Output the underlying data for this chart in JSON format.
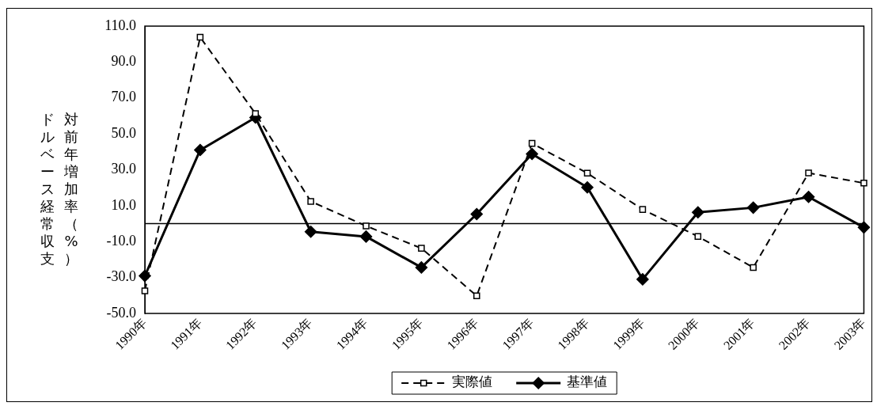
{
  "chart_data": {
    "type": "line",
    "ylabel": "対前年増加率（%）ドルベース経常収支",
    "categories": [
      "1990年",
      "1991年",
      "1992年",
      "1993年",
      "1994年",
      "1995年",
      "1996年",
      "1997年",
      "1998年",
      "1999年",
      "2000年",
      "2001年",
      "2002年",
      "2003年"
    ],
    "series": [
      {
        "name": "実際値",
        "color": "#000000",
        "marker": "square",
        "line_style": "dashed",
        "values": [
          -37.4,
          103.8,
          61.3,
          12.4,
          -1.3,
          -13.7,
          -40.2,
          44.7,
          28.1,
          7.9,
          -7.1,
          -24.4,
          28.2,
          22.6
        ]
      },
      {
        "name": "基準値",
        "color": "#000000",
        "marker": "diamond",
        "line_style": "solid",
        "values": [
          -29.1,
          41.0,
          59.1,
          -4.5,
          -7.2,
          -24.4,
          5.3,
          38.8,
          20.2,
          -31.0,
          6.3,
          8.9,
          14.9,
          -2.1
        ]
      }
    ],
    "ylim": [
      -50,
      110
    ],
    "yticks": [
      {
        "value": 110,
        "label": "110.0"
      },
      {
        "value": 90,
        "label": "90.0"
      },
      {
        "value": 70,
        "label": "70.0"
      },
      {
        "value": 50,
        "label": "50.0"
      },
      {
        "value": 30,
        "label": "30.0"
      },
      {
        "value": 10,
        "label": "10.0"
      },
      {
        "value": -10,
        "label": "-10.0"
      },
      {
        "value": -30,
        "label": "-30.0"
      },
      {
        "value": -50,
        "label": "-50.0"
      }
    ],
    "ref_lines": [
      {
        "axis": "y",
        "value": 0,
        "color": "#000000"
      }
    ],
    "grid": false,
    "legend": "bottom"
  }
}
